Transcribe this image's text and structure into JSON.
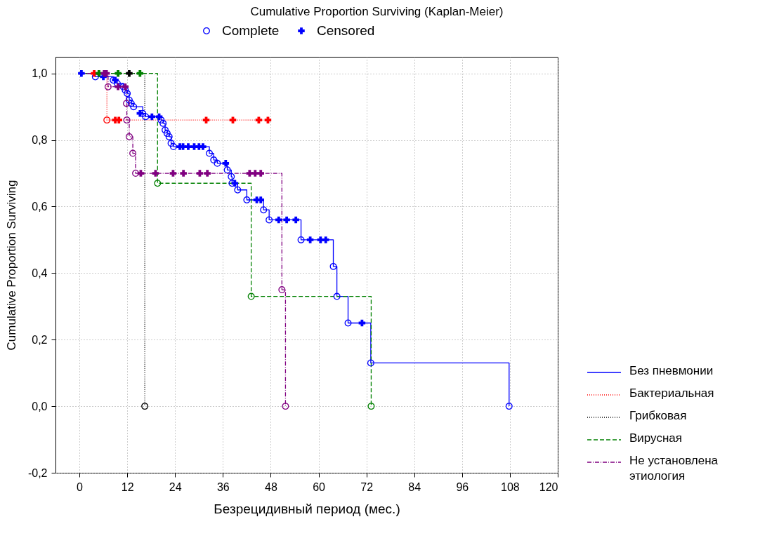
{
  "chart_data": {
    "type": "step",
    "title": "Cumulative Proportion Surviving (Kaplan-Meier)",
    "xlabel": "Безрецидивный период (мес.)",
    "ylabel": "Cumulative Proportion Surviving",
    "xlim": [
      -6,
      120
    ],
    "ylim": [
      -0.2,
      1.05
    ],
    "xticks": [
      0,
      12,
      24,
      36,
      48,
      60,
      72,
      84,
      96,
      108,
      120
    ],
    "yticks": [
      {
        "value": -0.2,
        "label": "-0,2"
      },
      {
        "value": 0,
        "label": "0,0"
      },
      {
        "value": 0.2,
        "label": "0,2"
      },
      {
        "value": 0.4,
        "label": "0,4"
      },
      {
        "value": 0.6,
        "label": "0,6"
      },
      {
        "value": 0.8,
        "label": "0,8"
      },
      {
        "value": 1,
        "label": "1,0"
      }
    ],
    "grid": true,
    "legend": "right",
    "series": [
      {
        "type": "step",
        "name": "Без пневмонии",
        "color": "#0000ff",
        "line_style": "solid",
        "x": [
          0,
          4,
          8.5,
          9.5,
          11,
          11.5,
          12,
          12.5,
          13,
          13.6,
          15.9,
          16.6,
          20.5,
          21,
          21.5,
          22,
          22.5,
          23,
          23.6,
          32.6,
          33.7,
          34.6,
          37.1,
          38.1,
          38.3,
          39.7,
          42,
          46.2,
          47.6,
          55.6,
          63.7,
          64.6,
          67.4,
          73.1,
          107.8
        ],
        "values": [
          1,
          0.99,
          0.98,
          0.97,
          0.96,
          0.95,
          0.94,
          0.92,
          0.91,
          0.9,
          0.88,
          0.87,
          0.86,
          0.85,
          0.83,
          0.82,
          0.81,
          0.79,
          0.78,
          0.76,
          0.74,
          0.73,
          0.71,
          0.69,
          0.67,
          0.65,
          0.62,
          0.59,
          0.56,
          0.5,
          0.42,
          0.33,
          0.25,
          0.13,
          0
        ]
      },
      {
        "type": "step",
        "name": "Бактериальная",
        "color": "#ff0000",
        "line_style": "dotted",
        "x": [
          0,
          6.9,
          47.3
        ],
        "values": [
          1,
          0.86,
          0.86
        ]
      },
      {
        "type": "step",
        "name": "Грибковая",
        "color": "#000000",
        "line_style": "dotted",
        "x": [
          0,
          16.4
        ],
        "values": [
          1,
          0
        ]
      },
      {
        "type": "step",
        "name": "Вирусная",
        "color": "#008000",
        "line_style": "dashed",
        "x": [
          0,
          19.6,
          43.1,
          73.2
        ],
        "values": [
          1,
          0.67,
          0.33,
          0
        ]
      },
      {
        "type": "step",
        "name": "Не установлена этиология",
        "color": "#800080",
        "line_style": "dashdot",
        "x": [
          0,
          7.2,
          11.8,
          11.9,
          12.5,
          13.4,
          14.1,
          50.8,
          51.7
        ],
        "values": [
          1,
          0.96,
          0.91,
          0.86,
          0.81,
          0.76,
          0.7,
          0.35,
          0
        ]
      },
      {
        "type": "scatter",
        "name": "Complete",
        "color": "#0000ff",
        "marker": "circle",
        "x": [
          4,
          8.5,
          9.5,
          11,
          11.5,
          12,
          12.5,
          13,
          13.6,
          15.9,
          16.6,
          20.5,
          21,
          21.5,
          22,
          22.5,
          23,
          23.6,
          32.6,
          33.7,
          34.6,
          37.1,
          38.1,
          38.3,
          39.7,
          42,
          46.2,
          47.6,
          55.6,
          63.7,
          64.6,
          67.4,
          73.1,
          107.8
        ],
        "values": [
          0.99,
          0.98,
          0.97,
          0.96,
          0.95,
          0.94,
          0.92,
          0.91,
          0.9,
          0.88,
          0.87,
          0.86,
          0.85,
          0.83,
          0.82,
          0.81,
          0.79,
          0.78,
          0.76,
          0.74,
          0.73,
          0.71,
          0.69,
          0.67,
          0.65,
          0.62,
          0.59,
          0.56,
          0.5,
          0.42,
          0.33,
          0.25,
          0.13,
          0
        ]
      },
      {
        "type": "scatter",
        "name": "Censored",
        "color": "#0000ff",
        "marker": "cross",
        "x": [
          0.5,
          6,
          9,
          15.2,
          18.2,
          20,
          25.2,
          26,
          27.3,
          28.8,
          30,
          31,
          36.7,
          39,
          44.5,
          45.5,
          50,
          52,
          54.3,
          57.9,
          60.5,
          61.8,
          70.9
        ],
        "values": [
          1,
          0.99,
          0.98,
          0.88,
          0.87,
          0.87,
          0.78,
          0.78,
          0.78,
          0.78,
          0.78,
          0.78,
          0.73,
          0.67,
          0.62,
          0.62,
          0.56,
          0.56,
          0.56,
          0.5,
          0.5,
          0.5,
          0.25
        ]
      },
      {
        "type": "scatter",
        "color": "#ff0000",
        "marker": "circle",
        "x": [
          6.9
        ],
        "values": [
          0.86
        ]
      },
      {
        "type": "scatter",
        "color": "#ff0000",
        "marker": "cross",
        "x": [
          3.7,
          9,
          9.9,
          31.8,
          38.5,
          45,
          47.3
        ],
        "values": [
          1,
          0.86,
          0.86,
          0.86,
          0.86,
          0.86,
          0.86
        ]
      },
      {
        "type": "scatter",
        "color": "#000000",
        "marker": "circle",
        "x": [
          16.4
        ],
        "values": [
          0
        ]
      },
      {
        "type": "scatter",
        "color": "#000000",
        "marker": "cross",
        "x": [
          12.5
        ],
        "values": [
          1
        ]
      },
      {
        "type": "scatter",
        "color": "#008000",
        "marker": "circle",
        "x": [
          19.6,
          43.1,
          73.2
        ],
        "values": [
          0.67,
          0.33,
          0
        ]
      },
      {
        "type": "scatter",
        "color": "#008000",
        "marker": "cross",
        "x": [
          4.9,
          9.7,
          15.2
        ],
        "values": [
          1,
          1,
          1
        ]
      },
      {
        "type": "scatter",
        "color": "#800080",
        "marker": "circle",
        "x": [
          7.2,
          11.8,
          11.9,
          12.5,
          13.4,
          14.1,
          50.8,
          51.7
        ],
        "values": [
          0.96,
          0.91,
          0.86,
          0.81,
          0.76,
          0.7,
          0.35,
          0
        ]
      },
      {
        "type": "scatter",
        "color": "#800080",
        "marker": "cross",
        "x": [
          6.2,
          6.8,
          9.7,
          11.5,
          15.4,
          19.1,
          23.5,
          26.1,
          30.2,
          32.1,
          42.7,
          44.1,
          45.5
        ],
        "values": [
          1,
          1,
          0.96,
          0.96,
          0.7,
          0.7,
          0.7,
          0.7,
          0.7,
          0.7,
          0.7,
          0.7,
          0.7
        ]
      }
    ]
  }
}
